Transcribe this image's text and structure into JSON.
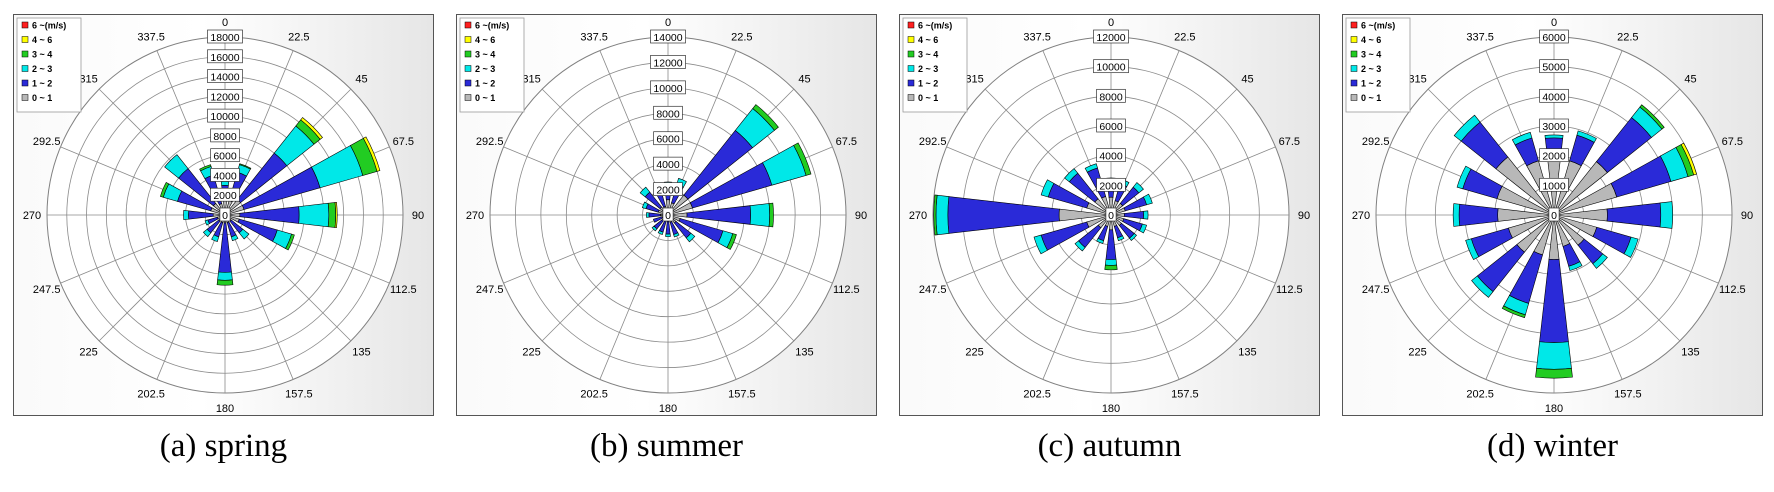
{
  "directions": [
    "0",
    "22.5",
    "45",
    "67.5",
    "90",
    "112.5",
    "135",
    "157.5",
    "180",
    "202.5",
    "225",
    "247.5",
    "270",
    "292.5",
    "315",
    "337.5"
  ],
  "legend": [
    "6 ~(m/s)",
    "4 ~ 6",
    "3 ~ 4",
    "2 ~ 3",
    "1 ~ 2",
    "0 ~ 1"
  ],
  "colors": [
    "#ff2020",
    "#ffff00",
    "#22cc22",
    "#00e8e8",
    "#2a2ad8",
    "#b8b8b8"
  ],
  "chart_data": [
    {
      "type": "wind-rose",
      "caption": "(a) spring",
      "ticks": [
        "0",
        "2000",
        "4000",
        "6000",
        "8000",
        "10000",
        "12000",
        "14000",
        "16000",
        "18000"
      ],
      "rmax": 18000,
      "bins": [
        "0~1",
        "1~2",
        "2~3",
        "3~4",
        "4~6",
        "6~"
      ],
      "values": [
        [
          1500,
          1500,
          400,
          0,
          0,
          0
        ],
        [
          1500,
          3000,
          800,
          100,
          0,
          0
        ],
        [
          2000,
          6000,
          3500,
          800,
          300,
          0
        ],
        [
          2000,
          8000,
          4500,
          1500,
          300,
          0
        ],
        [
          1500,
          6000,
          3000,
          700,
          150,
          0
        ],
        [
          1500,
          4000,
          1500,
          300,
          0,
          0
        ],
        [
          800,
          1500,
          800,
          0,
          0,
          0
        ],
        [
          800,
          1500,
          400,
          0,
          0,
          0
        ],
        [
          800,
          5000,
          800,
          500,
          0,
          0
        ],
        [
          800,
          1500,
          500,
          0,
          0,
          0
        ],
        [
          800,
          1500,
          500,
          0,
          0,
          0
        ],
        [
          800,
          1000,
          300,
          0,
          0,
          0
        ],
        [
          1200,
          2500,
          500,
          0,
          0,
          0
        ],
        [
          1500,
          3500,
          1500,
          300,
          0,
          0
        ],
        [
          1500,
          4500,
          1800,
          0,
          0,
          0
        ],
        [
          1200,
          3000,
          900,
          200,
          0,
          0
        ]
      ]
    },
    {
      "type": "wind-rose",
      "caption": "(b) summer",
      "ticks": [
        "0",
        "2000",
        "4000",
        "6000",
        "8000",
        "10000",
        "12000",
        "14000"
      ],
      "rmax": 14000,
      "bins": [
        "0~1",
        "1~2",
        "2~3",
        "3~4",
        "4~6",
        "6~"
      ],
      "values": [
        [
          1200,
          1200,
          200,
          0,
          0,
          0
        ],
        [
          1000,
          1500,
          500,
          0,
          0,
          0
        ],
        [
          2000,
          6500,
          2200,
          400,
          0,
          0
        ],
        [
          2000,
          6500,
          2800,
          400,
          0,
          0
        ],
        [
          1500,
          5000,
          1500,
          300,
          0,
          0
        ],
        [
          1000,
          3500,
          800,
          300,
          0,
          0
        ],
        [
          800,
          1500,
          400,
          0,
          0,
          0
        ],
        [
          600,
          1000,
          200,
          0,
          0,
          0
        ],
        [
          500,
          1000,
          200,
          0,
          0,
          0
        ],
        [
          500,
          900,
          200,
          0,
          0,
          0
        ],
        [
          500,
          900,
          200,
          0,
          0,
          0
        ],
        [
          500,
          700,
          0,
          0,
          0,
          0
        ],
        [
          600,
          900,
          200,
          0,
          0,
          0
        ],
        [
          800,
          1000,
          300,
          0,
          0,
          0
        ],
        [
          800,
          1500,
          500,
          0,
          0,
          0
        ],
        [
          700,
          1100,
          300,
          0,
          0,
          0
        ]
      ]
    },
    {
      "type": "wind-rose",
      "caption": "(c) autumn",
      "ticks": [
        "0",
        "2000",
        "4000",
        "6000",
        "8000",
        "10000",
        "12000"
      ],
      "rmax": 12000,
      "bins": [
        "0~1",
        "1~2",
        "2~3",
        "3~4",
        "4~6",
        "6~"
      ],
      "values": [
        [
          1200,
          1000,
          300,
          0,
          0,
          0
        ],
        [
          1000,
          1200,
          300,
          0,
          0,
          0
        ],
        [
          1000,
          1400,
          400,
          0,
          0,
          0
        ],
        [
          1000,
          1500,
          400,
          0,
          0,
          0
        ],
        [
          900,
          1300,
          300,
          0,
          0,
          0
        ],
        [
          900,
          1300,
          300,
          0,
          0,
          0
        ],
        [
          900,
          1100,
          200,
          0,
          0,
          0
        ],
        [
          800,
          800,
          200,
          0,
          0,
          0
        ],
        [
          1000,
          2000,
          400,
          300,
          0,
          0
        ],
        [
          800,
          1000,
          200,
          0,
          0,
          0
        ],
        [
          1100,
          1700,
          300,
          0,
          0,
          0
        ],
        [
          1700,
          3200,
          500,
          0,
          0,
          0
        ],
        [
          3500,
          7500,
          800,
          150,
          0,
          0
        ],
        [
          1700,
          2700,
          500,
          0,
          0,
          0
        ],
        [
          1400,
          2200,
          400,
          0,
          0,
          0
        ],
        [
          1300,
          2000,
          300,
          0,
          0,
          0
        ]
      ]
    },
    {
      "type": "wind-rose",
      "caption": "(d) winter",
      "ticks": [
        "0",
        "1000",
        "2000",
        "3000",
        "4000",
        "5000",
        "6000"
      ],
      "rmax": 6000,
      "bins": [
        "0~1",
        "1~2",
        "2~3",
        "3~4",
        "4~6",
        "6~"
      ],
      "values": [
        [
          1900,
          700,
          100,
          0,
          0,
          0
        ],
        [
          1900,
          900,
          150,
          0,
          0,
          0
        ],
        [
          2300,
          1900,
          450,
          100,
          0,
          0
        ],
        [
          2200,
          1900,
          600,
          200,
          100,
          0
        ],
        [
          1800,
          1800,
          400,
          0,
          0,
          0
        ],
        [
          1500,
          1200,
          250,
          0,
          0,
          0
        ],
        [
          1300,
          800,
          200,
          0,
          0,
          0
        ],
        [
          1100,
          700,
          150,
          0,
          0,
          0
        ],
        [
          1500,
          2800,
          900,
          300,
          0,
          0
        ],
        [
          1400,
          1700,
          400,
          100,
          0,
          0
        ],
        [
          1600,
          1700,
          250,
          0,
          0,
          0
        ],
        [
          1600,
          1300,
          200,
          0,
          0,
          0
        ],
        [
          1900,
          1300,
          200,
          0,
          0,
          0
        ],
        [
          2000,
          1200,
          200,
          0,
          0,
          0
        ],
        [
          2500,
          1500,
          300,
          0,
          0,
          0
        ],
        [
          1900,
          800,
          200,
          0,
          0,
          0
        ]
      ]
    }
  ]
}
